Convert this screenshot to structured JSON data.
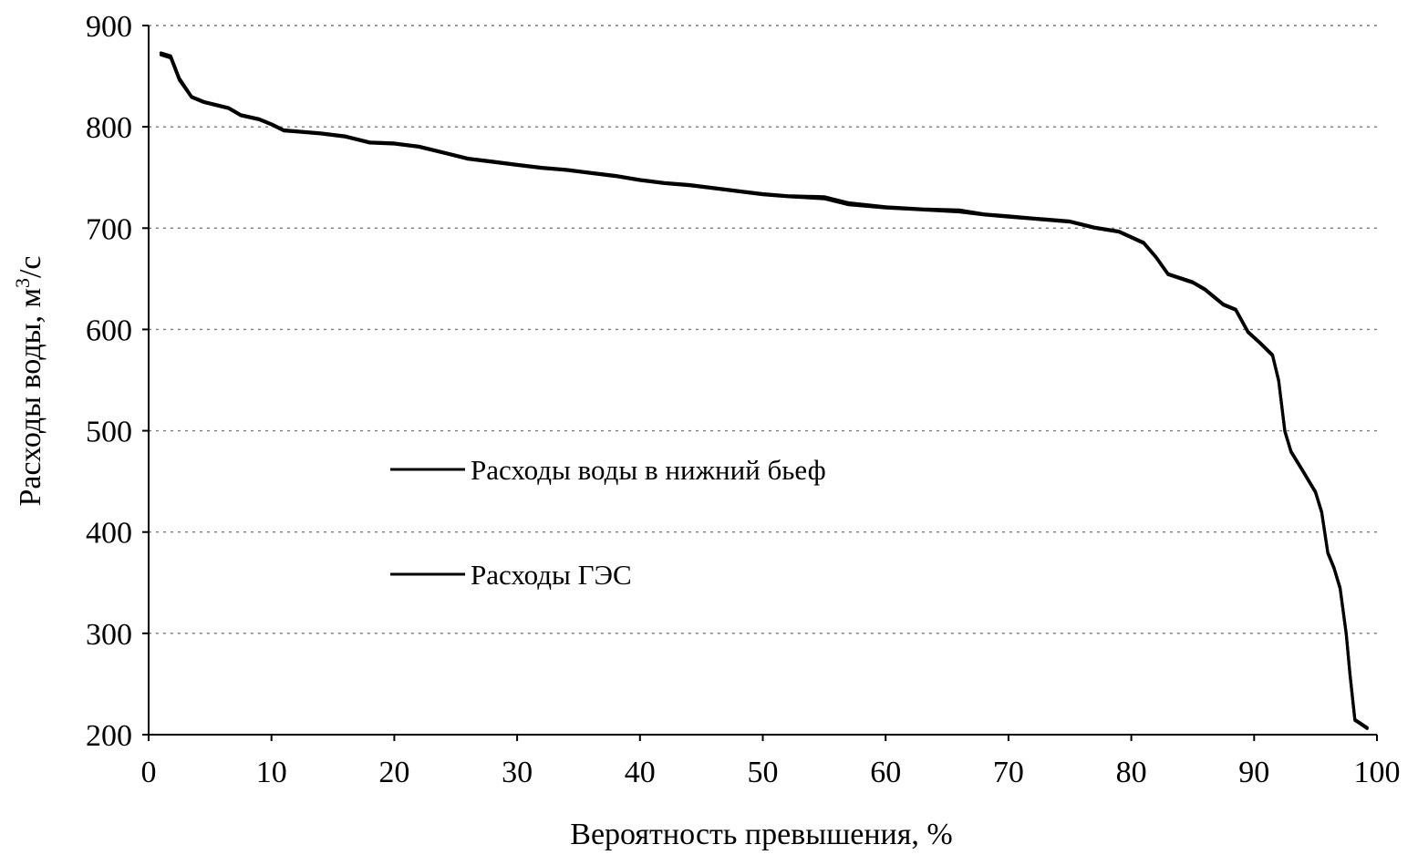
{
  "chart_data": {
    "type": "line",
    "xlabel": "Вероятность превышения, %",
    "ylabel_main": "Расходы воды, м",
    "ylabel_sup": "3",
    "ylabel_tail": "/с",
    "xlim": [
      0,
      100
    ],
    "ylim": [
      200,
      900
    ],
    "xticks": [
      0,
      10,
      20,
      30,
      40,
      50,
      60,
      70,
      80,
      90,
      100
    ],
    "yticks": [
      200,
      300,
      400,
      500,
      600,
      700,
      800,
      900
    ],
    "grid": "horizontal dashed",
    "legend_position": "center-left",
    "series": [
      {
        "name": "Расходы воды в нижний бьеф",
        "color": "#000000",
        "x": [
          1,
          1.8,
          2.5,
          3.5,
          4.5,
          5.5,
          6.5,
          7.5,
          9,
          10,
          11,
          12,
          14,
          16,
          18,
          20,
          22,
          24,
          26,
          28,
          30,
          32,
          34,
          36,
          38,
          40,
          42,
          44,
          46,
          48,
          50,
          52,
          55,
          57,
          60,
          63,
          66,
          68,
          70,
          72,
          75,
          77,
          79,
          81,
          82,
          83,
          85,
          86,
          87.5,
          88.5,
          89.5,
          90.5,
          91.5,
          92,
          92.5,
          93,
          94,
          95,
          95.5,
          96,
          96.5,
          97,
          97.5,
          97.8,
          98.2,
          98.6,
          99.2
        ],
        "y": [
          873,
          870,
          848,
          830,
          825,
          822,
          819,
          812,
          808,
          803,
          797,
          796,
          794,
          791,
          785,
          784,
          781,
          775,
          769,
          766,
          763,
          760,
          758,
          755,
          752,
          748,
          745,
          743,
          740,
          737,
          734,
          732,
          731,
          725,
          721,
          719,
          718,
          714,
          712,
          710,
          707,
          701,
          697,
          686,
          672,
          655,
          647,
          640,
          625,
          620,
          598,
          587,
          575,
          550,
          500,
          480,
          460,
          440,
          420,
          380,
          365,
          345,
          300,
          260,
          215,
          212,
          207
        ]
      },
      {
        "name": "Расходы ГЭС",
        "color": "#000000",
        "x": [
          1,
          1.8,
          2.5,
          3.5,
          4.5,
          5.5,
          6.5,
          7.5,
          9,
          10,
          11,
          12,
          14,
          16,
          18,
          20,
          22,
          24,
          26,
          28,
          30,
          32,
          34,
          36,
          38,
          40,
          42,
          44,
          46,
          48,
          50,
          52,
          55,
          57,
          60,
          63,
          66,
          68,
          70,
          72,
          75,
          77,
          79,
          81,
          82,
          83,
          85,
          86,
          87.5,
          88.5,
          89.5,
          90.5,
          91.5,
          92,
          92.5,
          93,
          94,
          95,
          95.5,
          96,
          96.5,
          97,
          97.5,
          97.8,
          98.2,
          98.6,
          99.2
        ],
        "y": [
          871,
          868,
          846,
          829,
          824,
          821,
          818,
          811,
          807,
          802,
          796,
          795,
          793,
          790,
          784,
          783,
          780,
          774,
          768,
          765,
          762,
          759,
          757,
          754,
          751,
          747,
          744,
          742,
          739,
          736,
          733,
          731,
          729,
          723,
          720,
          718,
          716,
          713,
          711,
          709,
          706,
          700,
          696,
          685,
          671,
          654,
          646,
          639,
          624,
          619,
          597,
          586,
          574,
          549,
          499,
          479,
          459,
          439,
          419,
          379,
          364,
          344,
          299,
          259,
          214,
          211,
          206
        ]
      }
    ]
  }
}
